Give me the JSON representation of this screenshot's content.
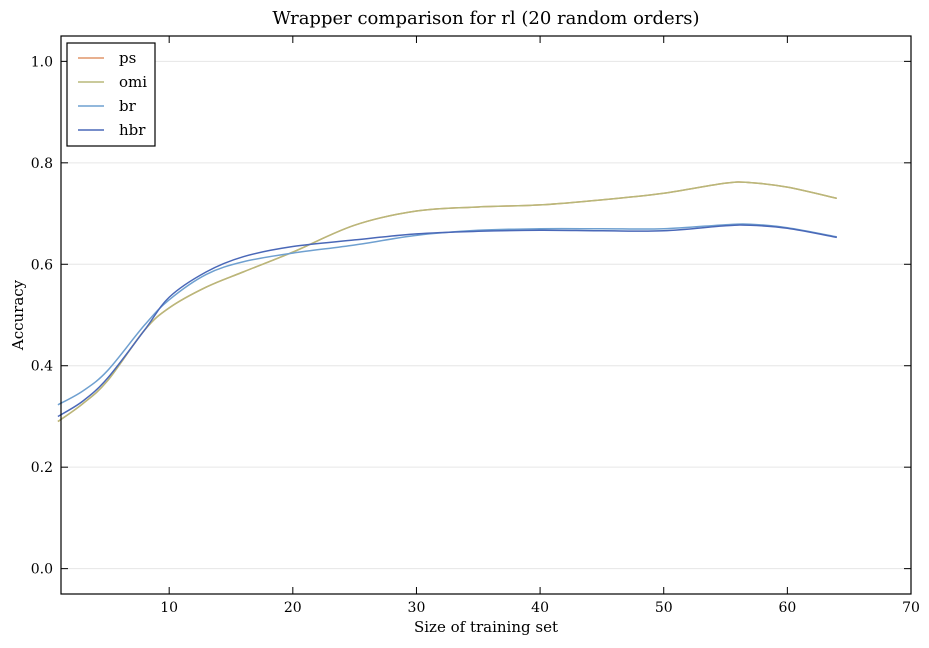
{
  "chart_data": {
    "type": "line",
    "title": "Wrapper comparison for rl (20 random orders)",
    "xlabel": "Size of training set",
    "ylabel": "Accuracy",
    "xlim": [
      1.25,
      70
    ],
    "ylim": [
      -0.05,
      1.05
    ],
    "xticks": [
      10,
      20,
      30,
      40,
      50,
      60,
      70
    ],
    "yticks": [
      0.0,
      0.2,
      0.4,
      0.6,
      0.8,
      1.0
    ],
    "ytick_labels": [
      "0.0",
      "0.2",
      "0.4",
      "0.6",
      "0.8",
      "1.0"
    ],
    "grid": "horizontal",
    "legend_position": "top-left",
    "x": [
      1,
      3,
      5,
      8,
      10,
      13,
      16,
      20,
      25,
      30,
      35,
      40,
      45,
      50,
      55,
      57,
      60,
      64
    ],
    "series": [
      {
        "name": "ps",
        "color": "#e0956a",
        "values": [
          0.29,
          0.325,
          0.37,
          0.47,
          0.514,
          0.555,
          0.585,
          0.624,
          0.677,
          0.705,
          0.713,
          0.717,
          0.727,
          0.74,
          0.76,
          0.761,
          0.752,
          0.73
        ]
      },
      {
        "name": "omi",
        "color": "#b8b87a",
        "values": [
          0.29,
          0.325,
          0.37,
          0.47,
          0.514,
          0.555,
          0.585,
          0.624,
          0.677,
          0.705,
          0.713,
          0.717,
          0.727,
          0.74,
          0.76,
          0.761,
          0.752,
          0.73
        ]
      },
      {
        "name": "br",
        "color": "#6fa0d0",
        "values": [
          0.323,
          0.35,
          0.39,
          0.48,
          0.53,
          0.58,
          0.605,
          0.622,
          0.638,
          0.657,
          0.667,
          0.67,
          0.67,
          0.67,
          0.678,
          0.679,
          0.672,
          0.654
        ]
      },
      {
        "name": "hbr",
        "color": "#4a68b8",
        "values": [
          0.3,
          0.33,
          0.375,
          0.47,
          0.535,
          0.585,
          0.615,
          0.635,
          0.648,
          0.66,
          0.665,
          0.667,
          0.666,
          0.666,
          0.676,
          0.677,
          0.671,
          0.653
        ]
      }
    ]
  }
}
